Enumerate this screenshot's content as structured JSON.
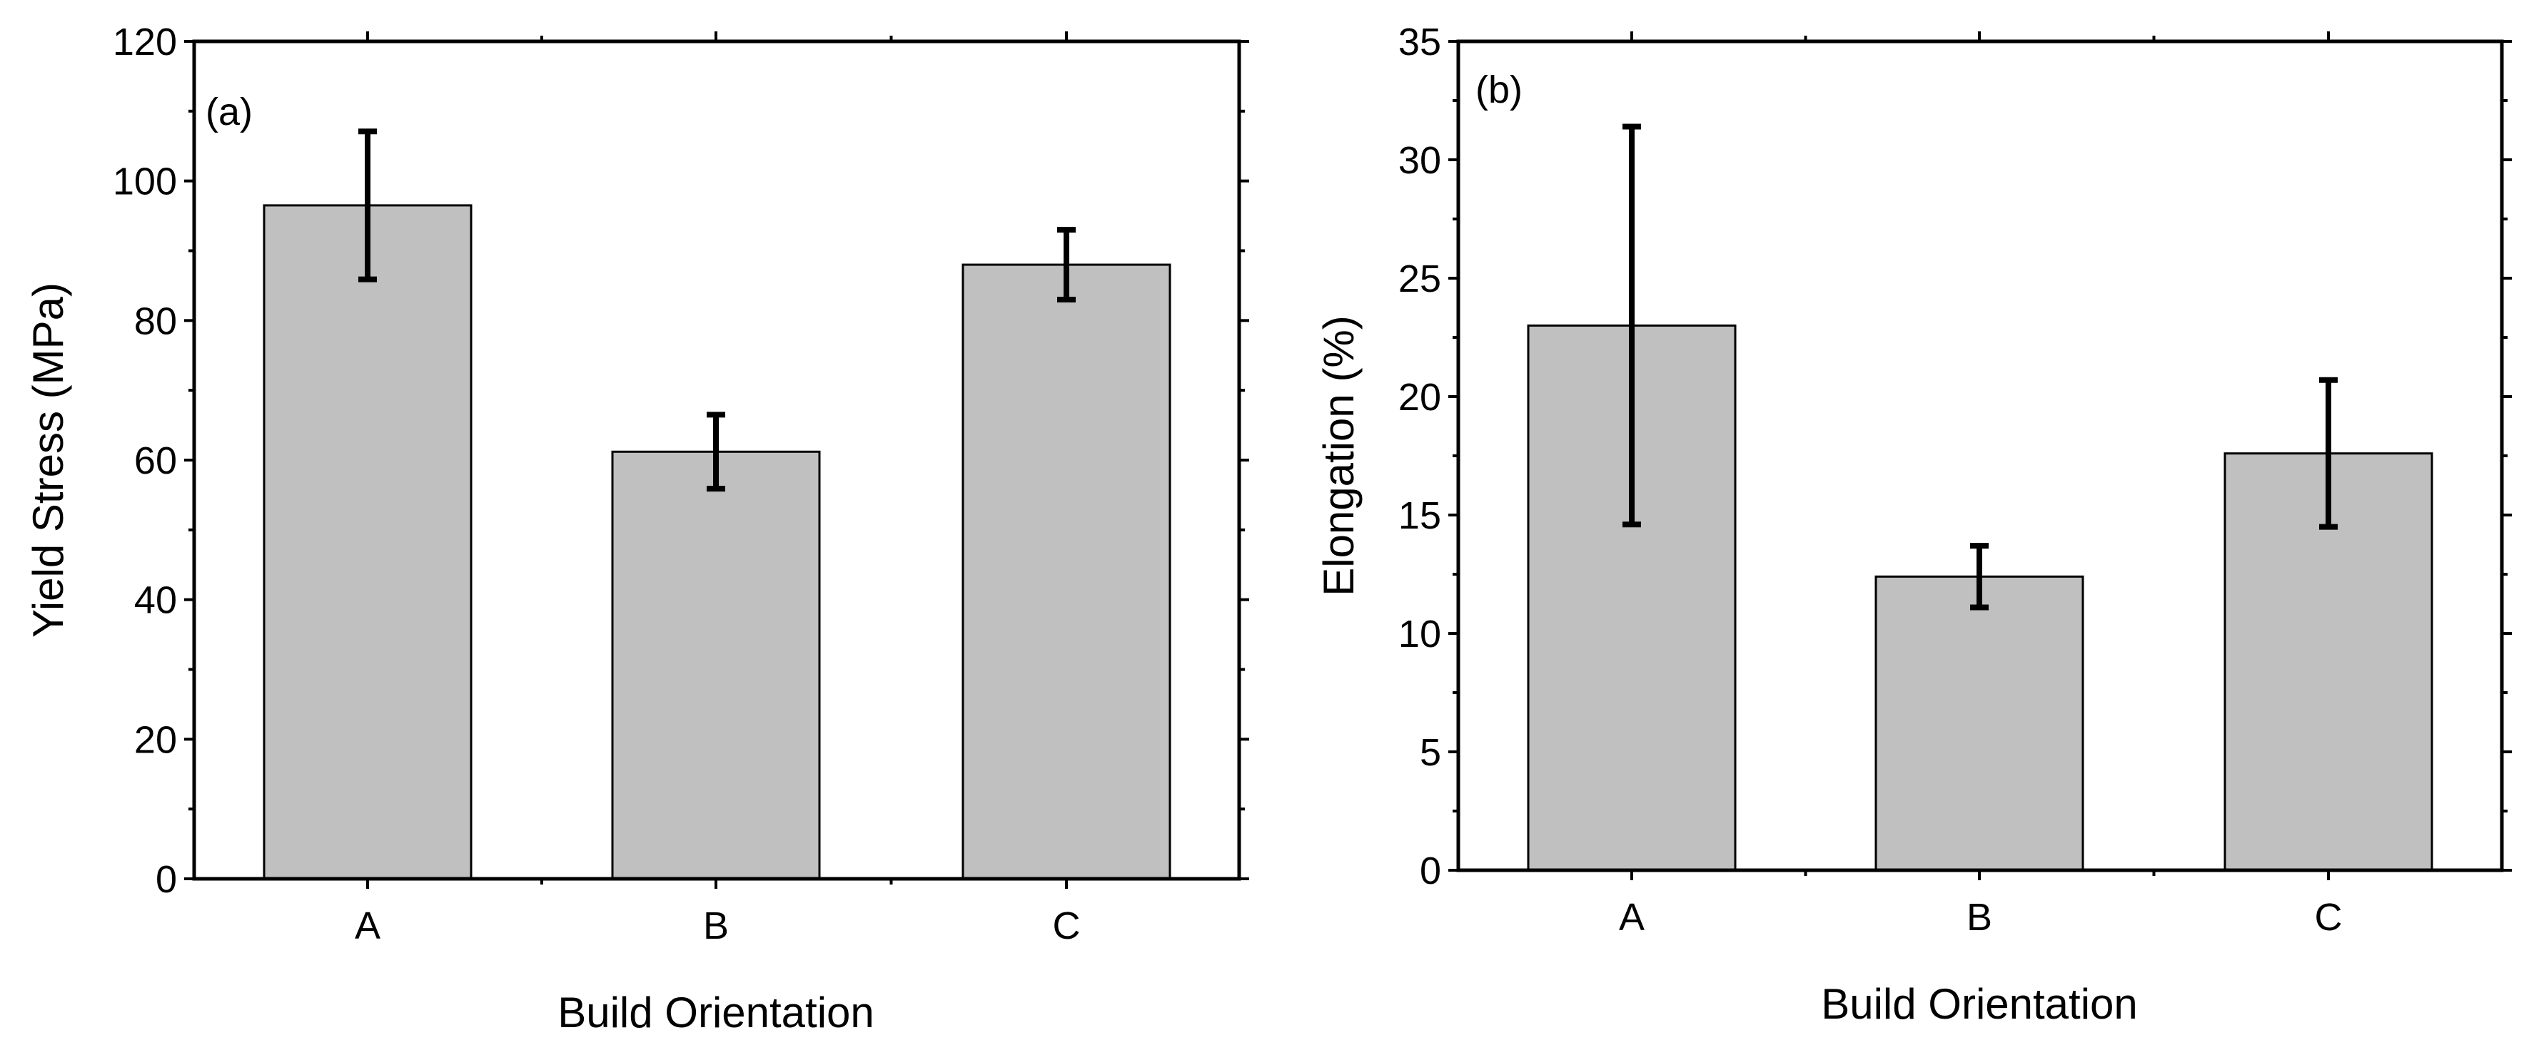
{
  "chart_data": [
    {
      "type": "bar",
      "panel_label": "(a)",
      "categories": [
        "A",
        "B",
        "C"
      ],
      "values": [
        96.5,
        61.2,
        88.0
      ],
      "errors": [
        10.6,
        5.3,
        5.0
      ],
      "xlabel": "Build Orientation",
      "ylabel": "Yield Stress (MPa)",
      "ylim": [
        0,
        120
      ],
      "yticks": [
        0,
        20,
        40,
        60,
        80,
        100,
        120
      ],
      "ytick_labels": [
        "0",
        "20",
        "40",
        "60",
        "80",
        "100",
        "120"
      ],
      "grid": false,
      "bar_color": "#c0c0c0"
    },
    {
      "type": "bar",
      "panel_label": "(b)",
      "categories": [
        "A",
        "B",
        "C"
      ],
      "values": [
        23.0,
        12.4,
        17.6
      ],
      "errors": [
        8.4,
        1.3,
        3.1
      ],
      "xlabel": "Build Orientation",
      "ylabel": "Elongation (%)",
      "ylim": [
        0,
        35
      ],
      "yticks": [
        0,
        5,
        10,
        15,
        20,
        25,
        30,
        35
      ],
      "ytick_labels": [
        "0",
        "5",
        "10",
        "15",
        "20",
        "25",
        "30",
        "35"
      ],
      "grid": false,
      "bar_color": "#c0c0c0"
    }
  ]
}
